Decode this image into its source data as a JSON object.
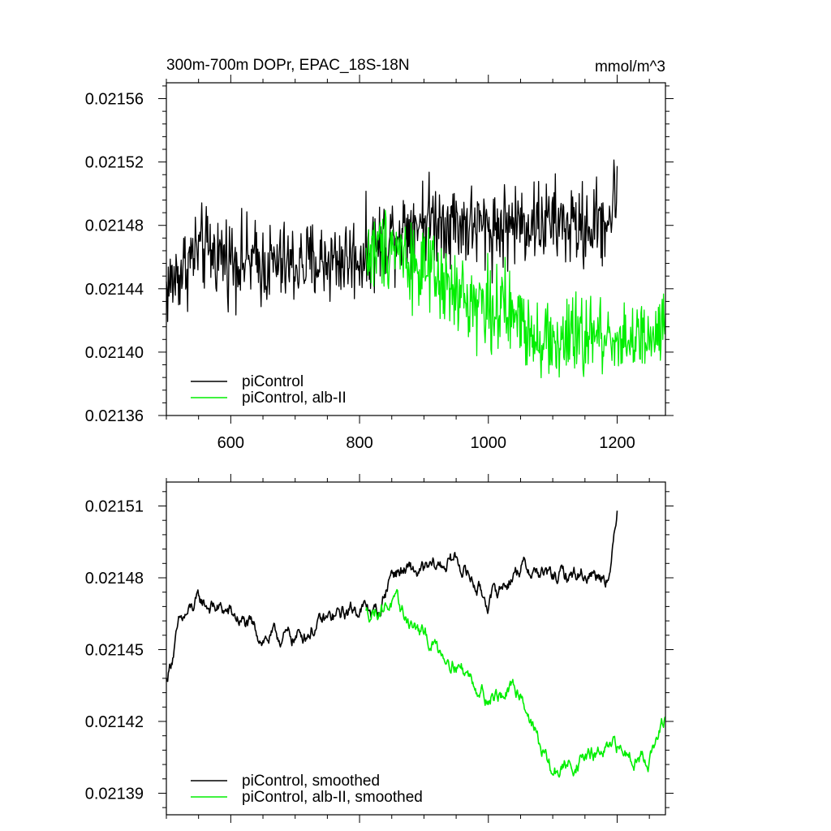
{
  "chart_data": [
    {
      "type": "line",
      "title": "300m-700m DOPr, EPAC_18S-18N",
      "units": "mmol/m^3",
      "xlim": [
        500,
        1275
      ],
      "ylim": [
        0.02136,
        0.02157
      ],
      "xticks": [
        600,
        800,
        1000,
        1200
      ],
      "xtick_labels": [
        "600",
        "800",
        "1000",
        "1200"
      ],
      "yticks": [
        0.02136,
        0.0214,
        0.02144,
        0.02148,
        0.02152,
        0.02156
      ],
      "ytick_labels": [
        "0.02136",
        "0.02140",
        "0.02144",
        "0.02148",
        "0.02152",
        "0.02156"
      ],
      "grid": false,
      "legend_position": "bottom-left",
      "series": [
        {
          "name": "piControl",
          "color": "#000000",
          "x_start": 500,
          "x_end": 1200,
          "anchors": [
            [
              500,
              0.02144
            ],
            [
              550,
              0.021465
            ],
            [
              600,
              0.02146
            ],
            [
              650,
              0.021455
            ],
            [
              700,
              0.021455
            ],
            [
              750,
              0.021458
            ],
            [
              800,
              0.02146
            ],
            [
              850,
              0.021475
            ],
            [
              900,
              0.021485
            ],
            [
              950,
              0.021482
            ],
            [
              1000,
              0.021478
            ],
            [
              1050,
              0.021482
            ],
            [
              1100,
              0.021482
            ],
            [
              1150,
              0.021478
            ],
            [
              1190,
              0.021485
            ],
            [
              1200,
              0.021505
            ]
          ],
          "noise": 2.2e-05
        },
        {
          "name": "piControl, alb-II",
          "color": "#00ee00",
          "x_start": 810,
          "x_end": 1275,
          "anchors": [
            [
              810,
              0.02146
            ],
            [
              850,
              0.02147
            ],
            [
              900,
              0.02145
            ],
            [
              950,
              0.021435
            ],
            [
              1000,
              0.02143
            ],
            [
              1050,
              0.02142
            ],
            [
              1100,
              0.021405
            ],
            [
              1150,
              0.02141
            ],
            [
              1200,
              0.02141
            ],
            [
              1250,
              0.021405
            ],
            [
              1275,
              0.021415
            ]
          ],
          "noise": 2.2e-05
        }
      ]
    },
    {
      "type": "line",
      "title": "",
      "xlim": [
        500,
        1275
      ],
      "ylim": [
        0.021381,
        0.02152
      ],
      "xticks": [
        600,
        800,
        1000,
        1200
      ],
      "yticks": [
        0.02139,
        0.02142,
        0.02145,
        0.02148,
        0.02151
      ],
      "ytick_labels": [
        "0.02139",
        "0.02142",
        "0.02145",
        "0.02148",
        "0.02151"
      ],
      "grid": false,
      "legend_position": "bottom-left",
      "series": [
        {
          "name": "piControl, smoothed",
          "color": "#000000",
          "x_start": 500,
          "x_end": 1200,
          "anchors": [
            [
              500,
              0.021437
            ],
            [
              520,
              0.02146
            ],
            [
              550,
              0.02147
            ],
            [
              600,
              0.021465
            ],
            [
              650,
              0.021455
            ],
            [
              700,
              0.021455
            ],
            [
              750,
              0.021462
            ],
            [
              800,
              0.021468
            ],
            [
              830,
              0.021465
            ],
            [
              850,
              0.021483
            ],
            [
              900,
              0.021482
            ],
            [
              950,
              0.021488
            ],
            [
              1000,
              0.02147
            ],
            [
              1050,
              0.021485
            ],
            [
              1100,
              0.02148
            ],
            [
              1150,
              0.021482
            ],
            [
              1190,
              0.021482
            ],
            [
              1200,
              0.02151
            ]
          ],
          "noise": 4.5e-06
        },
        {
          "name": "piControl, alb-II, smoothed",
          "color": "#00ee00",
          "x_start": 810,
          "x_end": 1275,
          "anchors": [
            [
              810,
              0.021465
            ],
            [
              850,
              0.02147
            ],
            [
              900,
              0.021455
            ],
            [
              950,
              0.021445
            ],
            [
              1000,
              0.02143
            ],
            [
              1050,
              0.021433
            ],
            [
              1080,
              0.02141
            ],
            [
              1100,
              0.021398
            ],
            [
              1150,
              0.021405
            ],
            [
              1200,
              0.021408
            ],
            [
              1250,
              0.021405
            ],
            [
              1275,
              0.02142
            ]
          ],
          "noise": 4.5e-06
        }
      ]
    }
  ]
}
